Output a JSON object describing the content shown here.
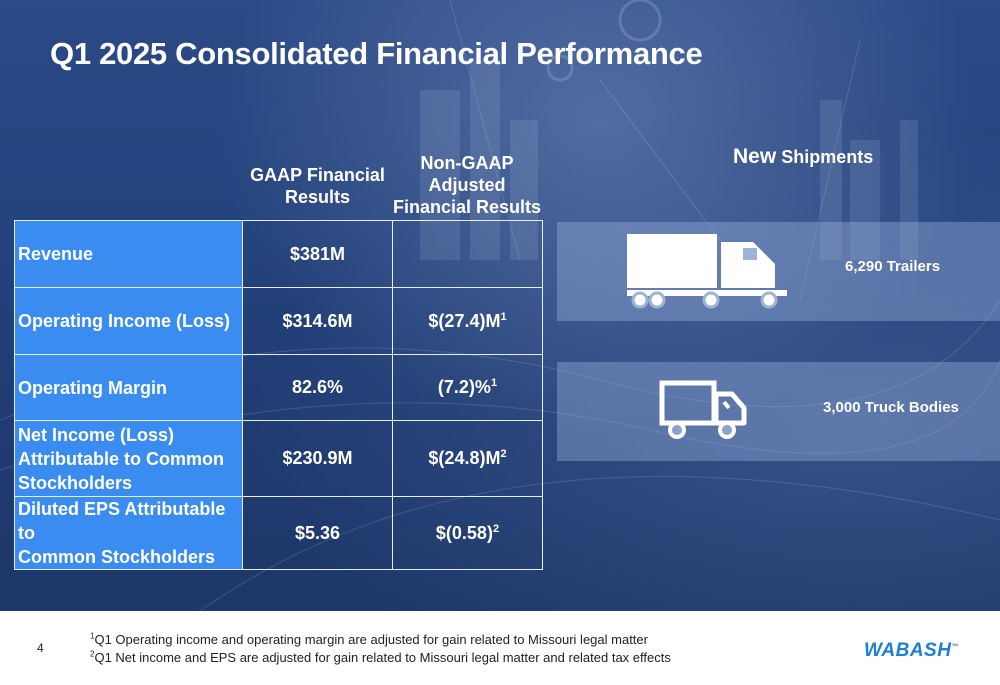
{
  "title": "Q1 2025 Consolidated Financial Performance",
  "columns": {
    "gaap": "GAAP Financial Results",
    "nongaap_line1": "Non-GAAP",
    "nongaap_line2": "Adjusted",
    "nongaap_line3": "Financial Results"
  },
  "rows": [
    {
      "label": "Revenue",
      "gaap": "$381M",
      "nongaap": "",
      "sup": ""
    },
    {
      "label": "Operating Income (Loss)",
      "gaap": "$314.6M",
      "nongaap": "$(27.4)M",
      "sup": "1"
    },
    {
      "label": "Operating Margin",
      "gaap": "82.6%",
      "nongaap": "(7.2)%",
      "sup": "1"
    },
    {
      "label_lines": [
        "Net Income (Loss)",
        "Attributable to Common",
        "Stockholders"
      ],
      "gaap": "$230.9M",
      "nongaap": "$(24.8)M",
      "sup": "2"
    },
    {
      "label_lines": [
        "Diluted EPS Attributable to",
        "Common Stockholders"
      ],
      "gaap": "$5.36",
      "nongaap": "$(0.58)",
      "sup": "2"
    }
  ],
  "shipments": {
    "heading_new": "New",
    "heading_rest": "Shipments",
    "items": [
      {
        "icon": "semi-truck-icon",
        "text": "6,290 Trailers"
      },
      {
        "icon": "box-truck-icon",
        "text": "3,000 Truck Bodies"
      }
    ]
  },
  "footer": {
    "page_number": "4",
    "footnote1_sup": "1",
    "footnote1": "Q1 Operating income and operating margin are adjusted for gain related to Missouri legal matter",
    "footnote2_sup": "2",
    "footnote2": "Q1 Net income and EPS are adjusted for gain related to Missouri legal matter and related tax effects",
    "logo": "WABASH",
    "logo_tm": "™"
  },
  "colors": {
    "label_cell": "#3a8cf0",
    "background": "#24427c",
    "logo": "#1e7fd8"
  }
}
